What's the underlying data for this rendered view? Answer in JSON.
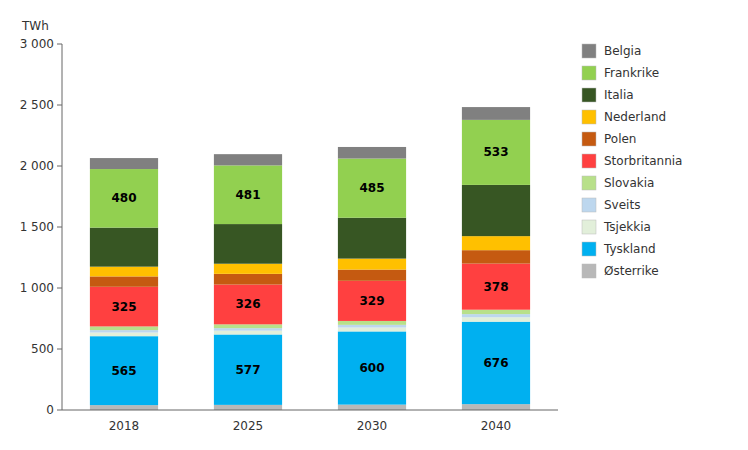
{
  "chart_data": {
    "type": "bar",
    "stacked": true,
    "y_label": "TWh",
    "categories": [
      "2018",
      "2025",
      "2030",
      "2040"
    ],
    "series": [
      {
        "name": "Østerrike",
        "color": "#b8b8b8",
        "values": [
          40,
          42,
          44,
          48
        ]
      },
      {
        "name": "Tyskland",
        "color": "#00b0f0",
        "values": [
          565,
          577,
          600,
          676
        ],
        "data_labels": true
      },
      {
        "name": "Tsjekkia",
        "color": "#e2efda",
        "values": [
          30,
          31,
          32,
          36
        ]
      },
      {
        "name": "Sveits",
        "color": "#bdd7ee",
        "values": [
          20,
          21,
          22,
          26
        ]
      },
      {
        "name": "Slovakia",
        "color": "#b8e08a",
        "values": [
          30,
          31,
          32,
          36
        ]
      },
      {
        "name": "Storbritannia",
        "color": "#ff4040",
        "values": [
          325,
          326,
          329,
          378
        ],
        "data_labels": true
      },
      {
        "name": "Polen",
        "color": "#c55a11",
        "values": [
          85,
          88,
          92,
          110
        ]
      },
      {
        "name": "Nederland",
        "color": "#ffc000",
        "values": [
          80,
          83,
          90,
          115
        ]
      },
      {
        "name": "Italia",
        "color": "#375623",
        "values": [
          320,
          325,
          335,
          420
        ]
      },
      {
        "name": "Frankrike",
        "color": "#92d050",
        "values": [
          480,
          481,
          485,
          533
        ],
        "data_labels": true
      },
      {
        "name": "Belgia",
        "color": "#808080",
        "values": [
          90,
          92,
          95,
          105
        ]
      }
    ],
    "ylim": [
      0,
      3000
    ],
    "yticks": [
      0,
      500,
      {
        "value": 1000,
        "label": "1 000"
      },
      {
        "value": 1500,
        "label": "1 500"
      },
      {
        "value": 2000,
        "label": "2 000"
      },
      {
        "value": 2500,
        "label": "2 500"
      },
      {
        "value": 3000,
        "label": "3 000"
      }
    ],
    "grid": false,
    "legend": "right"
  }
}
